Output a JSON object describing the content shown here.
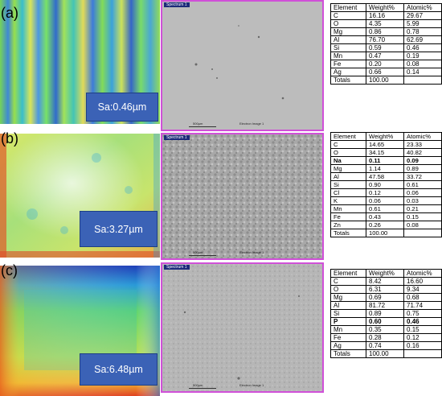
{
  "panels": [
    {
      "label": "(a)",
      "sa": "Sa:0.46µm",
      "spectrum": "Spectrum 1",
      "scale": "500µm",
      "image_label": "Electron Image 1",
      "table": {
        "header": [
          "Element",
          "Weight%",
          "Atomic%"
        ],
        "rows": [
          [
            "C",
            "16.16",
            "29.67"
          ],
          [
            "O",
            "4.35",
            "5.99"
          ],
          [
            "Mg",
            "0.86",
            "0.78"
          ],
          [
            "Al",
            "76.70",
            "62.69"
          ],
          [
            "Si",
            "0.59",
            "0.46"
          ],
          [
            "Mn",
            "0.47",
            "0.19"
          ],
          [
            "Fe",
            "0.20",
            "0.08"
          ],
          [
            "Ag",
            "0.66",
            "0.14"
          ],
          [
            "Totals",
            "100.00",
            ""
          ]
        ]
      }
    },
    {
      "label": "(b)",
      "sa": "Sa:3.27µm",
      "spectrum": "Spectrum 1",
      "scale": "500µm",
      "image_label": "Electron Image 1",
      "table": {
        "header": [
          "Element",
          "Weight%",
          "Atomic%"
        ],
        "rows": [
          [
            "C",
            "14.65",
            "23.33"
          ],
          [
            "O",
            "34.15",
            "40.82"
          ],
          [
            "Na",
            "0.11",
            "0.09"
          ],
          [
            "Mg",
            "1.14",
            "0.89"
          ],
          [
            "Al",
            "47.58",
            "33.72"
          ],
          [
            "Si",
            "0.90",
            "0.61"
          ],
          [
            "Cl",
            "0.12",
            "0.06"
          ],
          [
            "K",
            "0.06",
            "0.03"
          ],
          [
            "Mn",
            "0.61",
            "0.21"
          ],
          [
            "Fe",
            "0.43",
            "0.15"
          ],
          [
            "Zn",
            "0.26",
            "0.08"
          ],
          [
            "Totals",
            "100.00",
            ""
          ]
        ]
      }
    },
    {
      "label": "(c)",
      "sa": "Sa:6.48µm",
      "spectrum": "Spectrum 1",
      "scale": "500µm",
      "image_label": "Electron Image 1",
      "table": {
        "header": [
          "Element",
          "Weight%",
          "Atomic%"
        ],
        "rows": [
          [
            "C",
            "8.42",
            "16.60"
          ],
          [
            "O",
            "6.31",
            "9.34"
          ],
          [
            "Mg",
            "0.69",
            "0.68"
          ],
          [
            "Al",
            "81.72",
            "71.74"
          ],
          [
            "Si",
            "0.89",
            "0.75"
          ],
          [
            "P",
            "0.60",
            "0.46"
          ],
          [
            "Mn",
            "0.35",
            "0.15"
          ],
          [
            "Fe",
            "0.28",
            "0.12"
          ],
          [
            "Ag",
            "0.74",
            "0.16"
          ],
          [
            "Totals",
            "100.00",
            ""
          ]
        ]
      }
    }
  ],
  "highlight": {
    "sa_box": "#3b62b6",
    "sem_border": "#d050d8"
  }
}
